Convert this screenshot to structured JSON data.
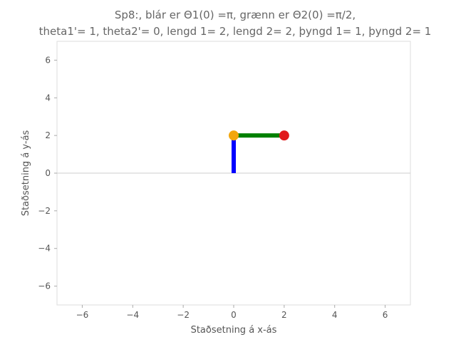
{
  "chart_data": {
    "type": "line",
    "title_line1": "Sp8:, blár er Θ1(0) =π, grænn er Θ2(0) =π/2,",
    "title_line2": "theta1'= 1, theta2'= 0, lengd 1= 2, lengd 2= 2, þyngd 1= 1, þyngd 2= 1",
    "xlabel": "Staðsetning á x-ás",
    "ylabel": "Staðsetning á y-ás",
    "xlim": [
      -7,
      7
    ],
    "ylim": [
      -7,
      7
    ],
    "xticks": [
      -6,
      -4,
      -2,
      0,
      2,
      4,
      6
    ],
    "yticks": [
      -6,
      -4,
      -2,
      0,
      2,
      4,
      6
    ],
    "grid": false,
    "reference_line_y": 0,
    "series": [
      {
        "color": "#0000ff",
        "x": [
          0,
          0
        ],
        "y": [
          0,
          2
        ]
      },
      {
        "color": "#008000",
        "x": [
          0,
          2
        ],
        "y": [
          2,
          2
        ]
      }
    ],
    "markers": [
      {
        "x": 0,
        "y": 2,
        "color": "#f2a60c"
      },
      {
        "x": 2,
        "y": 2,
        "color": "#e0191b"
      }
    ]
  }
}
